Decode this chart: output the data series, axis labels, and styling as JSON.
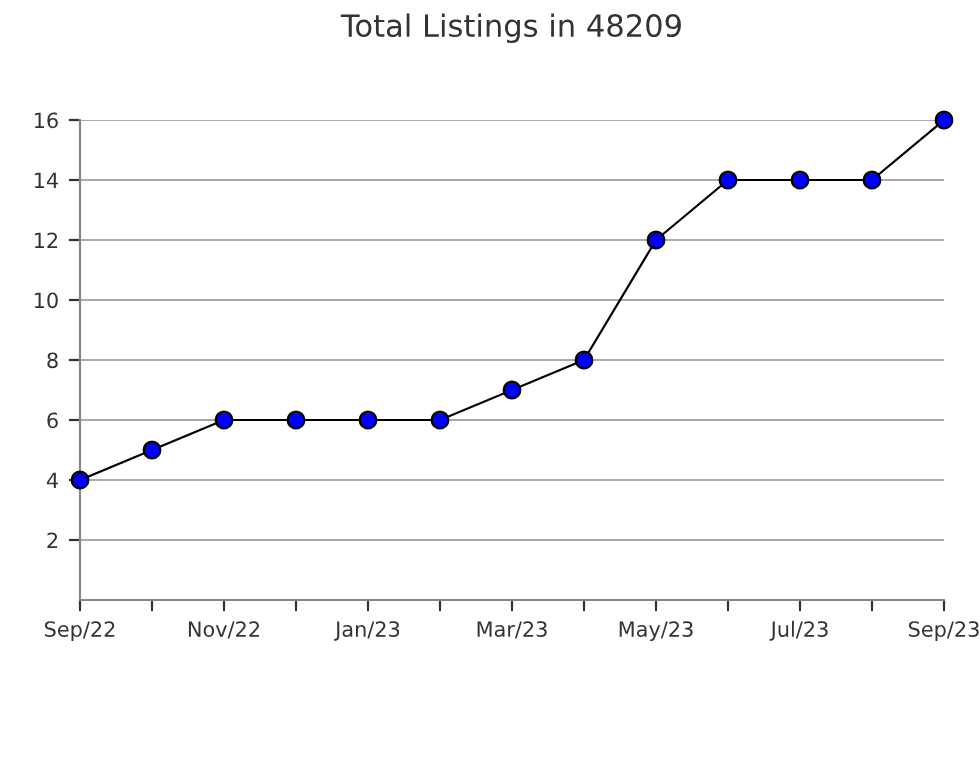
{
  "chart_data": {
    "type": "line",
    "title": "Total Listings in 48209",
    "categories": [
      "Sep/22",
      null,
      "Nov/22",
      null,
      "Jan/23",
      null,
      "Mar/23",
      null,
      "May/23",
      null,
      "Jul/23",
      null,
      "Sep/23"
    ],
    "series": [
      {
        "color": "#0000ff",
        "values": [
          4,
          5,
          6,
          6,
          6,
          6,
          7,
          8,
          12,
          14,
          14,
          14,
          16
        ]
      }
    ],
    "ylim": [
      0,
      16
    ],
    "yticks": [
      2,
      4,
      6,
      8,
      10,
      12,
      14,
      16
    ],
    "grid": "y",
    "marker": "circle",
    "line_style": "solid"
  }
}
